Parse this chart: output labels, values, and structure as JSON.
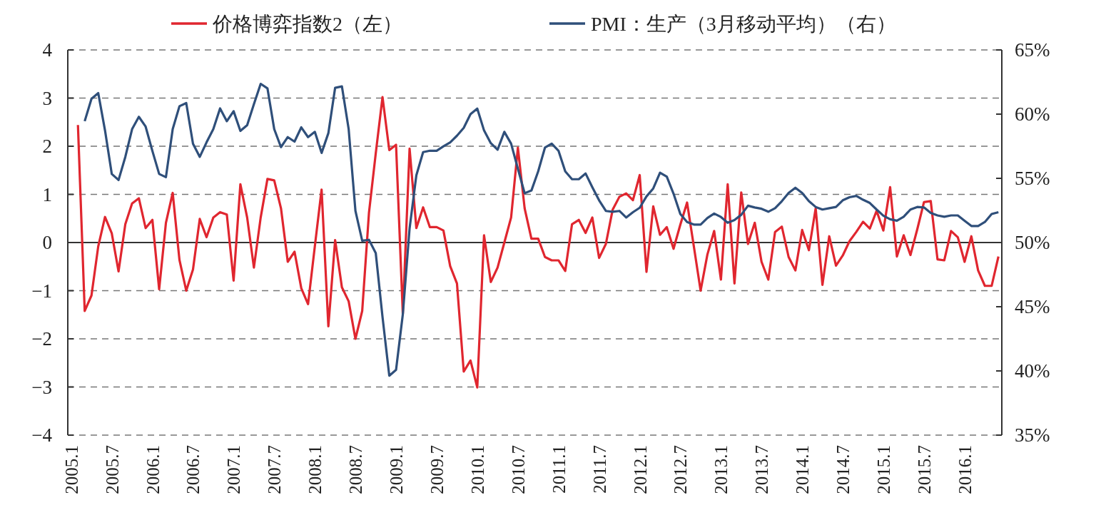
{
  "chart_data": {
    "type": "line",
    "categories": [
      "2005.1",
      null,
      null,
      null,
      null,
      null,
      "2005.7",
      null,
      null,
      null,
      null,
      null,
      "2006.1",
      null,
      null,
      null,
      null,
      null,
      "2006.7",
      null,
      null,
      null,
      null,
      null,
      "2007.1",
      null,
      null,
      null,
      null,
      null,
      "2007.7",
      null,
      null,
      null,
      null,
      null,
      "2008.1",
      null,
      null,
      null,
      null,
      null,
      "2008.7",
      null,
      null,
      null,
      null,
      null,
      "2009.1",
      null,
      null,
      null,
      null,
      null,
      "2009.7",
      null,
      null,
      null,
      null,
      null,
      "2010.1",
      null,
      null,
      null,
      null,
      null,
      "2010.7",
      null,
      null,
      null,
      null,
      null,
      "2011.1",
      null,
      null,
      null,
      null,
      null,
      "2011.7",
      null,
      null,
      null,
      null,
      null,
      "2012.1",
      null,
      null,
      null,
      null,
      null,
      "2012.7",
      null,
      null,
      null,
      null,
      null,
      "2013.1",
      null,
      null,
      null,
      null,
      null,
      "2013.7",
      null,
      null,
      null,
      null,
      null,
      "2014.1",
      null,
      null,
      null,
      null,
      null,
      "2014.7",
      null,
      null,
      null,
      null,
      null,
      "2015.1",
      null,
      null,
      null,
      null,
      null,
      "2015.7",
      null,
      null,
      null,
      null,
      null,
      "2016.1",
      null,
      null,
      null,
      null,
      null
    ],
    "series": [
      {
        "name": "价格博弈指数2（左）",
        "color": "#e0262f",
        "values": [
          null,
          2.44,
          -1.42,
          -1.1,
          -0.08,
          0.53,
          0.19,
          -0.6,
          0.38,
          0.81,
          0.92,
          0.3,
          0.47,
          -0.97,
          0.41,
          1.03,
          -0.36,
          -1.0,
          -0.56,
          0.49,
          0.11,
          0.52,
          0.63,
          0.58,
          -0.79,
          1.21,
          0.52,
          -0.52,
          0.52,
          1.32,
          1.29,
          0.71,
          -0.4,
          -0.19,
          -0.95,
          -1.28,
          -0.08,
          1.1,
          -1.74,
          0.05,
          -0.93,
          -1.22,
          -2.0,
          -1.42,
          0.62,
          1.85,
          3.02,
          1.92,
          2.03,
          -1.48,
          1.95,
          0.3,
          0.73,
          0.32,
          0.32,
          0.25,
          -0.49,
          -0.85,
          -2.68,
          -2.45,
          -3.01,
          0.15,
          -0.82,
          -0.52,
          0.0,
          0.52,
          1.97,
          0.71,
          0.08,
          0.08,
          -0.3,
          -0.37,
          -0.37,
          -0.59,
          0.38,
          0.47,
          0.2,
          0.52,
          -0.32,
          -0.03,
          0.68,
          0.95,
          1.02,
          0.88,
          1.4,
          -0.61,
          0.75,
          0.16,
          0.32,
          -0.13,
          0.37,
          0.83,
          -0.08,
          -1.0,
          -0.25,
          0.24,
          -0.77,
          1.21,
          -0.85,
          1.04,
          -0.03,
          0.41,
          -0.4,
          -0.77,
          0.22,
          0.33,
          -0.3,
          -0.58,
          0.26,
          -0.16,
          0.71,
          -0.88,
          0.13,
          -0.48,
          -0.27,
          0.03,
          0.22,
          0.43,
          0.29,
          0.66,
          0.25,
          1.15,
          -0.29,
          0.15,
          -0.26,
          0.27,
          0.84,
          0.86,
          -0.35,
          -0.37,
          0.24,
          0.11,
          -0.4,
          0.13,
          -0.58,
          -0.9,
          -0.9,
          -0.29
        ]
      },
      {
        "name": "PMI：生产（3月移动平均）（右）",
        "color": "#2f4f7a",
        "axis": "y2",
        "values": [
          null,
          null,
          59.45,
          61.19,
          61.64,
          58.73,
          55.34,
          54.87,
          56.67,
          58.83,
          59.79,
          59.03,
          57.13,
          55.34,
          55.09,
          58.83,
          60.62,
          60.86,
          57.7,
          56.67,
          57.8,
          58.83,
          60.45,
          59.45,
          60.23,
          58.69,
          59.14,
          60.78,
          62.36,
          62.01,
          58.83,
          57.43,
          58.21,
          57.86,
          58.97,
          58.21,
          58.62,
          56.98,
          58.52,
          62.05,
          62.16,
          58.83,
          52.46,
          50.14,
          50.21,
          49.18,
          44.2,
          39.63,
          40.08,
          44.4,
          51.1,
          55.24,
          57.04,
          57.15,
          57.15,
          57.49,
          57.8,
          58.32,
          58.93,
          60.0,
          60.43,
          58.73,
          57.74,
          57.23,
          58.62,
          57.7,
          55.75,
          53.84,
          54.05,
          55.54,
          57.39,
          57.7,
          57.15,
          55.54,
          54.93,
          54.93,
          55.38,
          54.31,
          53.29,
          52.46,
          52.4,
          52.46,
          51.95,
          52.36,
          52.71,
          53.59,
          54.21,
          55.44,
          55.13,
          53.8,
          52.22,
          51.6,
          51.4,
          51.4,
          51.91,
          52.26,
          51.99,
          51.54,
          51.75,
          52.16,
          52.87,
          52.73,
          52.63,
          52.4,
          52.67,
          53.22,
          53.86,
          54.27,
          53.86,
          53.22,
          52.77,
          52.57,
          52.67,
          52.77,
          53.29,
          53.53,
          53.63,
          53.33,
          53.08,
          52.57,
          52.09,
          51.81,
          51.7,
          52.01,
          52.57,
          52.77,
          52.73,
          52.3,
          52.11,
          52.01,
          52.11,
          52.11,
          51.7,
          51.29,
          51.29,
          51.6,
          52.22,
          52.36
        ]
      }
    ],
    "ylim": [
      -4,
      4
    ],
    "yticks": [
      -4,
      -3,
      -2,
      -1,
      0,
      1,
      2,
      3,
      4
    ],
    "y2lim": [
      35,
      65
    ],
    "y2ticks": [
      {
        "value": 35,
        "label": "35%"
      },
      {
        "value": 40,
        "label": "40%"
      },
      {
        "value": 45,
        "label": "45%"
      },
      {
        "value": 50,
        "label": "50%"
      },
      {
        "value": 55,
        "label": "55%"
      },
      {
        "value": 60,
        "label": "60%"
      },
      {
        "value": 65,
        "label": "65%"
      }
    ],
    "grid": "y",
    "legend": "top"
  }
}
